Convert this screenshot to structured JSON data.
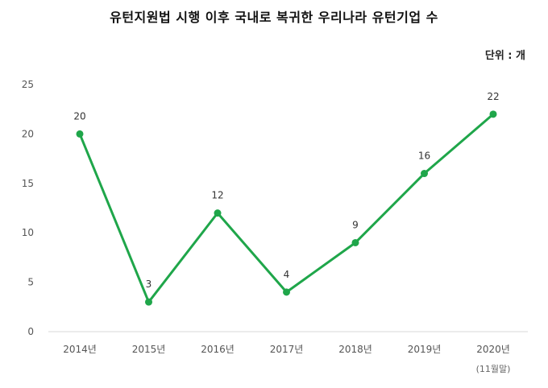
{
  "chart_data": {
    "type": "line",
    "title": "유턴지원법 시행 이후 국내로 복귀한 우리나라 유턴기업 수",
    "unit": "단위 : 개",
    "categories": [
      "2014년",
      "2015년",
      "2016년",
      "2017년",
      "2018년",
      "2019년",
      "2020년"
    ],
    "x_note": "(11월말)",
    "series": [
      {
        "values": [
          20,
          3,
          12,
          4,
          9,
          16,
          22
        ]
      }
    ],
    "ylim": [
      0,
      25
    ],
    "yticks": [
      0,
      5,
      10,
      15,
      20,
      25
    ],
    "grid": false,
    "line_color": "#1fa64a",
    "axis_color": "#d9d9d9"
  }
}
